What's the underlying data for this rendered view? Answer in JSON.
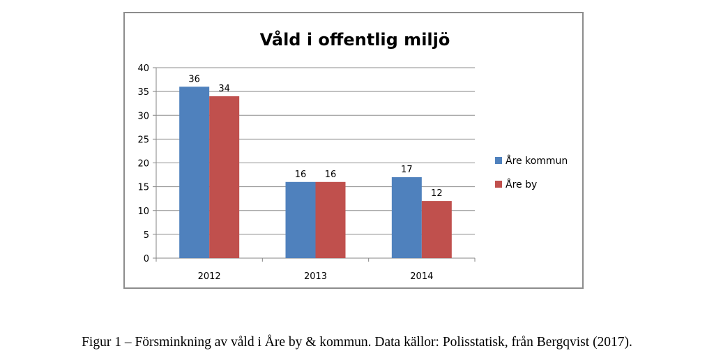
{
  "chart_data": {
    "type": "bar",
    "title": "Våld i offentlig miljö",
    "categories": [
      "2012",
      "2013",
      "2014"
    ],
    "series": [
      {
        "name": "Åre kommun",
        "values": [
          36,
          16,
          17
        ],
        "color": "#4f81bd"
      },
      {
        "name": "Åre by",
        "values": [
          34,
          16,
          12
        ],
        "color": "#c0504d"
      }
    ],
    "ylim": [
      0,
      40
    ],
    "yticks": [
      0,
      5,
      10,
      15,
      20,
      25,
      30,
      35,
      40
    ],
    "grid": true,
    "legend_position": "right",
    "data_labels": true
  },
  "caption": "Figur 1 – Försminkning av våld i Åre by & kommun. Data källor: Polisstatisk, från Bergqvist (2017)."
}
